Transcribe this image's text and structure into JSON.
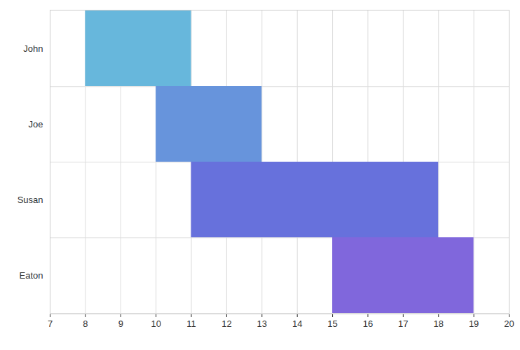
{
  "chart_data": {
    "type": "bar",
    "orientation": "horizontal",
    "categories": [
      "John",
      "Joe",
      "Susan",
      "Eaton"
    ],
    "values": [
      [
        8,
        11
      ],
      [
        10,
        13
      ],
      [
        11,
        18
      ],
      [
        15,
        19
      ]
    ],
    "colors": [
      "#67b7dc",
      "#6794dc",
      "#6771dc",
      "#8067dc"
    ],
    "xlim": [
      7,
      20
    ],
    "xticks": [
      7,
      8,
      9,
      10,
      11,
      12,
      13,
      14,
      15,
      16,
      17,
      18,
      19,
      20
    ],
    "grid": true
  }
}
